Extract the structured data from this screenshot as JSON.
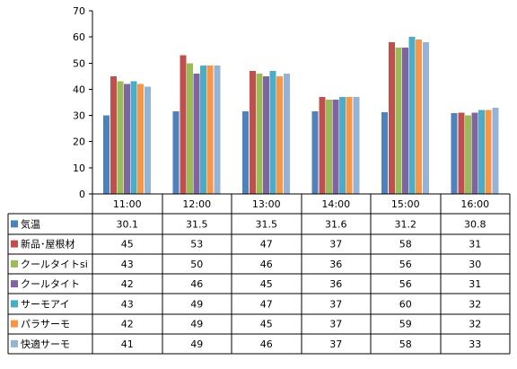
{
  "chart_data": {
    "type": "bar",
    "categories": [
      "11:00",
      "12:00",
      "13:00",
      "14:00",
      "15:00",
      "16:00"
    ],
    "ylim": [
      0,
      70
    ],
    "yticks": [
      0,
      10,
      20,
      30,
      40,
      50,
      60,
      70
    ],
    "grid": false,
    "legend": "table-left",
    "series": [
      {
        "name": "気温",
        "color": "#4F81BD",
        "values": [
          30.1,
          31.5,
          31.5,
          31.6,
          31.2,
          30.8
        ],
        "labels": [
          "30.1",
          "31.5",
          "31.5",
          "31.6",
          "31.2",
          "30.8"
        ]
      },
      {
        "name": "新品･屋根材",
        "color": "#C0504D",
        "values": [
          45,
          53,
          47,
          37,
          58,
          31
        ],
        "labels": [
          "45",
          "53",
          "47",
          "37",
          "58",
          "31"
        ]
      },
      {
        "name": "クールタイトsi",
        "color": "#9BBB59",
        "values": [
          43,
          50,
          46,
          36,
          56,
          30
        ],
        "labels": [
          "43",
          "50",
          "46",
          "36",
          "56",
          "30"
        ]
      },
      {
        "name": "クールタイト",
        "color": "#8064A2",
        "values": [
          42,
          46,
          45,
          36,
          56,
          31
        ],
        "labels": [
          "42",
          "46",
          "45",
          "36",
          "56",
          "31"
        ]
      },
      {
        "name": "サーモアイ",
        "color": "#4BACC6",
        "values": [
          43,
          49,
          47,
          37,
          60,
          32
        ],
        "labels": [
          "43",
          "49",
          "47",
          "37",
          "60",
          "32"
        ]
      },
      {
        "name": "パラサーモ",
        "color": "#F79646",
        "values": [
          42,
          49,
          45,
          37,
          59,
          32
        ],
        "labels": [
          "42",
          "49",
          "45",
          "37",
          "59",
          "32"
        ]
      },
      {
        "name": "快適サーモ",
        "color": "#95B3D7",
        "values": [
          41,
          49,
          46,
          37,
          58,
          33
        ],
        "labels": [
          "41",
          "49",
          "46",
          "37",
          "58",
          "33"
        ]
      }
    ]
  }
}
